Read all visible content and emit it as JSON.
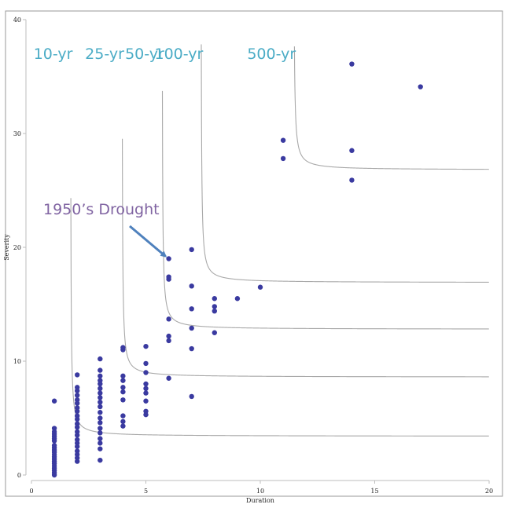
{
  "chart_data": {
    "type": "scatter",
    "title": "",
    "xlabel": "Duration",
    "ylabel": "Severity",
    "xlim": [
      0,
      20
    ],
    "ylim": [
      0,
      40
    ],
    "x_ticks": [
      0,
      5,
      10,
      15,
      20
    ],
    "y_ticks": [
      0,
      10,
      20,
      30,
      40
    ],
    "grid": false,
    "point_color": "#3a3aa0",
    "curve_color": "#a8a8a8",
    "label_color": "#4bacc6",
    "annotation_color": "#8064a2",
    "arrow_color": "#4f81bd",
    "series": [
      {
        "points": [
          [
            1,
            0.0
          ],
          [
            1,
            0.2
          ],
          [
            1,
            0.4
          ],
          [
            1,
            0.6
          ],
          [
            1,
            0.8
          ],
          [
            1,
            1.0
          ],
          [
            1,
            1.2
          ],
          [
            1,
            1.4
          ],
          [
            1,
            1.6
          ],
          [
            1,
            1.8
          ],
          [
            1,
            2.0
          ],
          [
            1,
            2.2
          ],
          [
            1,
            2.4
          ],
          [
            1,
            2.6
          ],
          [
            1,
            3.0
          ],
          [
            1,
            3.2
          ],
          [
            1,
            3.4
          ],
          [
            1,
            3.6
          ],
          [
            1,
            3.8
          ],
          [
            1,
            4.1
          ],
          [
            1,
            6.5
          ],
          [
            2,
            1.2
          ],
          [
            2,
            1.5
          ],
          [
            2,
            1.8
          ],
          [
            2,
            2.1
          ],
          [
            2,
            2.5
          ],
          [
            2,
            2.8
          ],
          [
            2,
            3.1
          ],
          [
            2,
            3.5
          ],
          [
            2,
            3.8
          ],
          [
            2,
            4.2
          ],
          [
            2,
            4.5
          ],
          [
            2,
            4.9
          ],
          [
            2,
            5.2
          ],
          [
            2,
            5.6
          ],
          [
            2,
            5.9
          ],
          [
            2,
            6.3
          ],
          [
            2,
            6.6
          ],
          [
            2,
            7.0
          ],
          [
            2,
            7.4
          ],
          [
            2,
            7.7
          ],
          [
            2,
            8.8
          ],
          [
            3,
            1.3
          ],
          [
            3,
            2.3
          ],
          [
            3,
            2.8
          ],
          [
            3,
            3.2
          ],
          [
            3,
            3.7
          ],
          [
            3,
            4.1
          ],
          [
            3,
            4.6
          ],
          [
            3,
            5.0
          ],
          [
            3,
            5.5
          ],
          [
            3,
            6.0
          ],
          [
            3,
            6.4
          ],
          [
            3,
            6.8
          ],
          [
            3,
            7.2
          ],
          [
            3,
            7.6
          ],
          [
            3,
            8.0
          ],
          [
            3,
            8.3
          ],
          [
            3,
            8.7
          ],
          [
            3,
            9.2
          ],
          [
            3,
            10.2
          ],
          [
            4,
            4.3
          ],
          [
            4,
            4.7
          ],
          [
            4,
            5.2
          ],
          [
            4,
            6.6
          ],
          [
            4,
            7.3
          ],
          [
            4,
            7.7
          ],
          [
            4,
            8.3
          ],
          [
            4,
            8.7
          ],
          [
            4,
            11.0
          ],
          [
            4,
            11.2
          ],
          [
            5,
            5.3
          ],
          [
            5,
            5.6
          ],
          [
            5,
            6.5
          ],
          [
            5,
            7.2
          ],
          [
            5,
            7.6
          ],
          [
            5,
            8.0
          ],
          [
            5,
            9.0
          ],
          [
            5,
            9.8
          ],
          [
            5,
            11.3
          ],
          [
            6,
            8.5
          ],
          [
            6,
            11.8
          ],
          [
            6,
            12.2
          ],
          [
            6,
            13.7
          ],
          [
            6,
            17.2
          ],
          [
            6,
            17.4
          ],
          [
            6,
            19.0
          ],
          [
            7,
            6.9
          ],
          [
            7,
            11.1
          ],
          [
            7,
            12.9
          ],
          [
            7,
            14.6
          ],
          [
            7,
            16.6
          ],
          [
            7,
            19.8
          ],
          [
            8,
            12.5
          ],
          [
            8,
            14.4
          ],
          [
            8,
            14.8
          ],
          [
            8,
            15.5
          ],
          [
            9,
            15.5
          ],
          [
            10,
            16.5
          ],
          [
            11,
            27.8
          ],
          [
            11,
            29.4
          ],
          [
            14,
            25.9
          ],
          [
            14,
            28.5
          ],
          [
            14,
            36.1
          ],
          [
            17,
            34.1
          ]
        ]
      }
    ],
    "return_period_curves": [
      {
        "label": "10-yr",
        "x_asymptote": 1.7,
        "y_asymptote": 3.4
      },
      {
        "label": "25-yr",
        "x_asymptote": 3.95,
        "y_asymptote": 8.6
      },
      {
        "label": "50-yr",
        "x_asymptote": 5.7,
        "y_asymptote": 12.8
      },
      {
        "label": "100-yr",
        "x_asymptote": 7.4,
        "y_asymptote": 16.9
      },
      {
        "label": "500-yr",
        "x_asymptote": 11.45,
        "y_asymptote": 26.8
      }
    ],
    "annotation": {
      "text": "1950’s Drought",
      "point": [
        6,
        19.0
      ]
    }
  }
}
